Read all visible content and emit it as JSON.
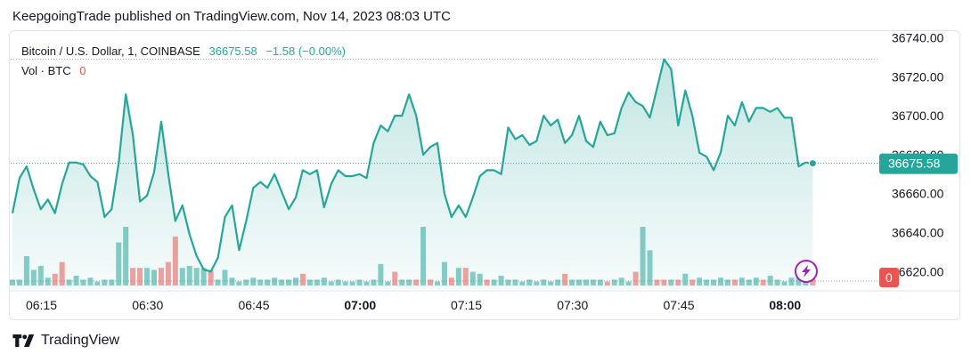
{
  "header": {
    "text": "KeepgoingTrade published on TradingView.com, Nov 14, 2023 08:03 UTC"
  },
  "legend": {
    "symbol": "Bitcoin / U.S. Dollar, 1, COINBASE",
    "price": "36675.58",
    "change": "−1.58 (−0.00%)",
    "volume_label": "Vol · BTC",
    "volume_value": "0"
  },
  "footer": {
    "brand": "TradingView"
  },
  "colors": {
    "line": "#26a69a",
    "fill": "#26a69a",
    "vol_up": "#26a69a",
    "vol_down": "#ef5350",
    "axis_text": "#131722",
    "grid": "#e0e3eb"
  },
  "icons": {
    "lightning": "lightning-icon",
    "logo": "tradingview-logo-icon"
  },
  "chart_data": {
    "type": "area",
    "x_axis": {
      "ticks": [
        "06:15",
        "06:30",
        "06:45",
        "07:00",
        "07:15",
        "07:30",
        "07:45",
        "08:00"
      ],
      "bold": [
        "07:00",
        "08:00"
      ],
      "minutes_per_bar": 1
    },
    "y_axis": {
      "ticks": [
        36620,
        36640,
        36660,
        36680,
        36700,
        36720,
        36740
      ],
      "labels": [
        "36620.00",
        "36640.00",
        "36660.00",
        "36680.00",
        "36700.00",
        "36720.00",
        "36740.00"
      ],
      "range": [
        36611,
        36743
      ],
      "position": "right"
    },
    "last_price_label": "36675.58",
    "last_volume_label": "0",
    "price_series": [
      36650,
      36668,
      36674,
      36662,
      36652,
      36657,
      36650,
      36665,
      36676,
      36676,
      36675,
      36669,
      36666,
      36648,
      36652,
      36676,
      36711,
      36690,
      36656,
      36659,
      36671,
      36697,
      36670,
      36646,
      36654,
      36639,
      36628,
      36621,
      36620,
      36627,
      36648,
      36654,
      36631,
      36646,
      36663,
      36666,
      36663,
      36670,
      36661,
      36652,
      36658,
      36672,
      36670,
      36672,
      36653,
      36665,
      36672,
      36669,
      36669,
      36670,
      36668,
      36686,
      36695,
      36692,
      36700,
      36700,
      36711,
      36700,
      36680,
      36684,
      36686,
      36660,
      36648,
      36654,
      36648,
      36658,
      36669,
      36672,
      36672,
      36670,
      36694,
      36688,
      36690,
      36685,
      36687,
      36700,
      36695,
      36698,
      36686,
      36690,
      36700,
      36687,
      36684,
      36697,
      36690,
      36691,
      36704,
      36712,
      36707,
      36705,
      36699,
      36714,
      36729,
      36724,
      36695,
      36713,
      36700,
      36681,
      36679,
      36672,
      36681,
      36700,
      36695,
      36707,
      36697,
      36704,
      36704,
      36702,
      36704,
      36699,
      36699,
      36674,
      36676,
      36675.58
    ],
    "volume_series": [
      3,
      3,
      15,
      8,
      10,
      4,
      6,
      12,
      3,
      5,
      3,
      4,
      2,
      3,
      3,
      22,
      30,
      9,
      9,
      9,
      8,
      9,
      12,
      25,
      9,
      10,
      9,
      9,
      8,
      3,
      8,
      4,
      2,
      3,
      4,
      3,
      3,
      4,
      3,
      3,
      4,
      6,
      3,
      3,
      4,
      2,
      3,
      2,
      2,
      3,
      2,
      3,
      11,
      2,
      7,
      3,
      3,
      3,
      30,
      3,
      2,
      12,
      4,
      9,
      9,
      7,
      6,
      3,
      3,
      5,
      3,
      3,
      2,
      3,
      2,
      3,
      2,
      3,
      6,
      3,
      3,
      3,
      3,
      3,
      2,
      3,
      4,
      2,
      7,
      30,
      18,
      3,
      3,
      3,
      3,
      6,
      3,
      4,
      3,
      3,
      4,
      3,
      3,
      4,
      3,
      4,
      3,
      5,
      3,
      2,
      4,
      5,
      3,
      9
    ],
    "volume_down": [
      0,
      0,
      0,
      0,
      0,
      0,
      1,
      1,
      0,
      0,
      0,
      0,
      0,
      0,
      0,
      0,
      0,
      1,
      1,
      0,
      0,
      1,
      1,
      1,
      0,
      0,
      0,
      0,
      1,
      0,
      0,
      0,
      0,
      0,
      0,
      0,
      0,
      0,
      0,
      0,
      0,
      1,
      0,
      0,
      0,
      0,
      0,
      0,
      0,
      0,
      0,
      0,
      0,
      0,
      1,
      0,
      0,
      1,
      0,
      1,
      0,
      0,
      1,
      0,
      1,
      0,
      0,
      1,
      0,
      0,
      0,
      0,
      0,
      0,
      0,
      0,
      0,
      0,
      1,
      0,
      0,
      0,
      0,
      0,
      1,
      0,
      0,
      0,
      1,
      0,
      0,
      1,
      1,
      0,
      1,
      0,
      1,
      0,
      0,
      0,
      0,
      0,
      1,
      0,
      0,
      0,
      1,
      0,
      0,
      0,
      0,
      0,
      0,
      1
    ]
  }
}
